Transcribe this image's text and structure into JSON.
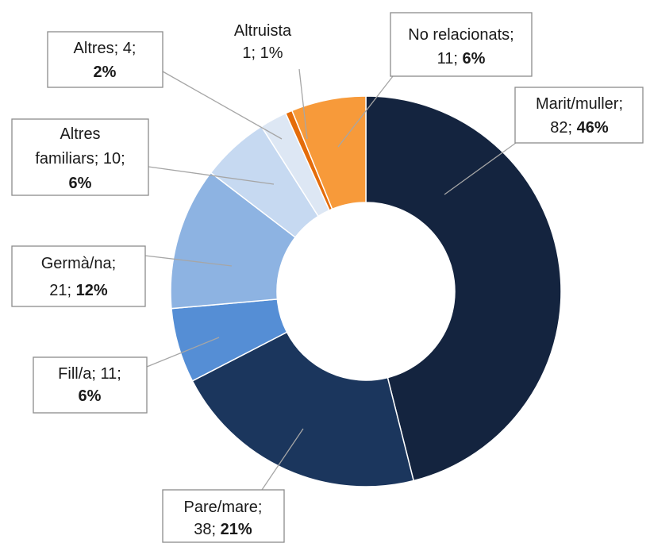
{
  "chart_data": {
    "type": "donut",
    "values": [
      82,
      38,
      11,
      21,
      10,
      4,
      1,
      11
    ],
    "colors": [
      "#14243f",
      "#1b365d",
      "#558ed5",
      "#8db3e2",
      "#c6d9f1",
      "#dde7f4",
      "#e46c0a",
      "#f79a3a"
    ],
    "labels": [
      [
        [
          "Marit/muller;"
        ],
        [
          "82; ",
          {
            "text": "46%",
            "bold": true
          }
        ]
      ],
      [
        [
          "Pare/mare;"
        ],
        [
          "38; ",
          {
            "text": "21%",
            "bold": true
          }
        ]
      ],
      [
        [
          "Fill/a; 11;"
        ],
        [
          {
            "text": "6%",
            "bold": true
          }
        ]
      ],
      [
        [
          "Germà/na;"
        ],
        [
          "21; ",
          {
            "text": "12%",
            "bold": true
          }
        ]
      ],
      [
        [
          "Altres"
        ],
        [
          "familiars; 10;"
        ],
        [
          {
            "text": "6%",
            "bold": true
          }
        ]
      ],
      [
        [
          "Altres; 4;"
        ],
        [
          {
            "text": "2%",
            "bold": true
          }
        ]
      ],
      [
        [
          "Altruista"
        ],
        [
          "1; 1%"
        ]
      ],
      [
        [
          "No relacionats;"
        ],
        [
          "11; ",
          {
            "text": "6%",
            "bold": true
          }
        ]
      ]
    ]
  }
}
